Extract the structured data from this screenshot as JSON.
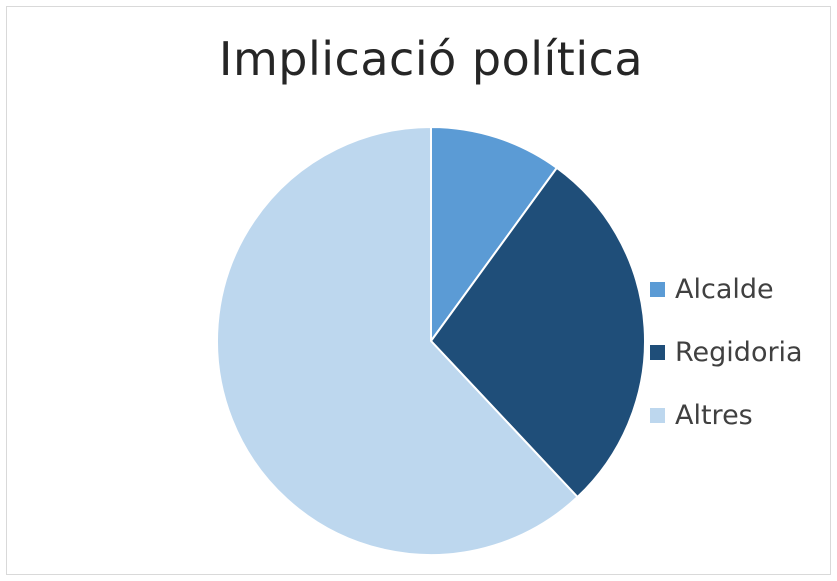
{
  "chart_data": {
    "type": "pie",
    "title": "Implicació política",
    "categories": [
      "Alcalde",
      "Regidoria",
      "Altres"
    ],
    "values": [
      10,
      28,
      62
    ],
    "colors": [
      "#5b9bd5",
      "#1f4e79",
      "#bdd7ee"
    ],
    "legend_position": "right",
    "start_angle_deg": 0,
    "direction": "clockwise"
  }
}
